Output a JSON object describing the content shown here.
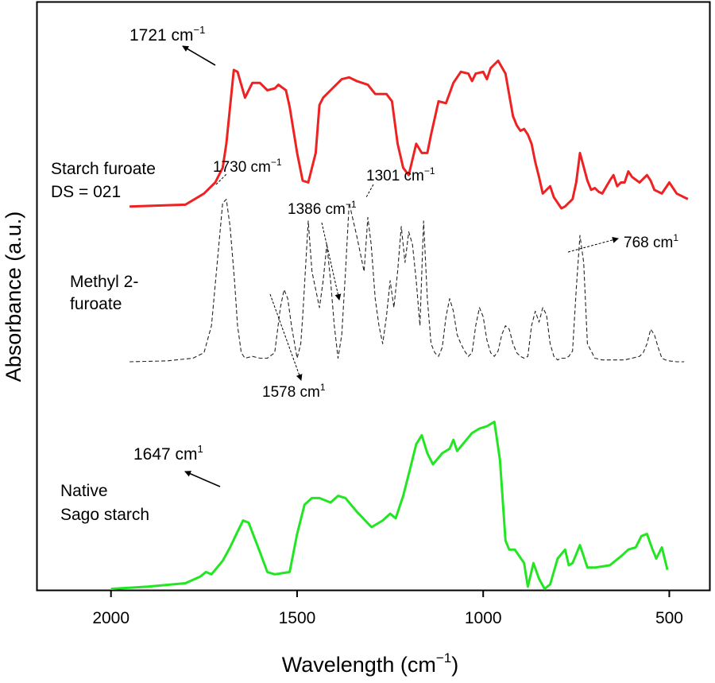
{
  "chart_data": {
    "type": "line",
    "title": "",
    "xlabel": "Wavelength (cm",
    "xlabel_sup": "−1",
    "xlabel_end": ")",
    "ylabel": "Absorbance (a.u.)",
    "xlim": [
      2200,
      390
    ],
    "ylim": [
      0,
      100
    ],
    "x_ticks": [
      2000,
      1500,
      1000,
      500
    ],
    "x_tick_labels": [
      "2000",
      "1500",
      "1000",
      "500"
    ],
    "y_ticks_shown": false,
    "series": [
      {
        "name": "Native Sago starch",
        "label_lines": [
          "Native",
          "Sago starch"
        ],
        "color": "#22e622",
        "style": "solid",
        "x": [
          2000,
          1900,
          1800,
          1760,
          1745,
          1730,
          1700,
          1680,
          1660,
          1645,
          1630,
          1600,
          1580,
          1560,
          1540,
          1520,
          1500,
          1480,
          1460,
          1440,
          1410,
          1390,
          1370,
          1340,
          1300,
          1270,
          1250,
          1235,
          1215,
          1195,
          1180,
          1165,
          1150,
          1135,
          1110,
          1090,
          1080,
          1070,
          1050,
          1030,
          1010,
          990,
          970,
          955,
          940,
          930,
          915,
          890,
          880,
          865,
          850,
          835,
          820,
          800,
          780,
          770,
          760,
          740,
          730,
          720,
          700,
          660,
          630,
          610,
          590,
          575,
          560,
          545,
          535,
          520,
          505
        ],
        "values": [
          0.5,
          1.5,
          3,
          6,
          8,
          7,
          13,
          19,
          26,
          31,
          30,
          17,
          8,
          7,
          7.5,
          8,
          25,
          38,
          41,
          41,
          39,
          42,
          41,
          35,
          28,
          31,
          34,
          32,
          42,
          55,
          65,
          69,
          61,
          56,
          61,
          63,
          67,
          62,
          66,
          70,
          72,
          73,
          75,
          58,
          22,
          18,
          18,
          12,
          1.5,
          12,
          5,
          0.5,
          2.5,
          14,
          18,
          11,
          12,
          20,
          15,
          10,
          10,
          11,
          15,
          18,
          19,
          24,
          25,
          18,
          14,
          19,
          9
        ]
      },
      {
        "name": "Methyl 2-furoate",
        "label_lines": [
          "Methyl 2-",
          "furoate"
        ],
        "color": "#222222",
        "style": "dashed",
        "x": [
          1950,
          1850,
          1780,
          1750,
          1730,
          1700,
          1690,
          1680,
          1668,
          1660,
          1650,
          1640,
          1620,
          1600,
          1580,
          1560,
          1545,
          1535,
          1525,
          1515,
          1500,
          1490,
          1485,
          1470,
          1460,
          1450,
          1440,
          1430,
          1420,
          1410,
          1400,
          1390,
          1380,
          1370,
          1360,
          1340,
          1320,
          1310,
          1301,
          1290,
          1280,
          1270,
          1260,
          1250,
          1240,
          1230,
          1220,
          1210,
          1200,
          1190,
          1180,
          1170,
          1160,
          1150,
          1140,
          1130,
          1120,
          1110,
          1100,
          1090,
          1080,
          1070,
          1060,
          1050,
          1040,
          1030,
          1020,
          1010,
          1000,
          990,
          980,
          970,
          960,
          950,
          940,
          930,
          920,
          910,
          900,
          890,
          880,
          870,
          860,
          850,
          840,
          830,
          820,
          810,
          800,
          790,
          780,
          770,
          760,
          750,
          740,
          730,
          720,
          700,
          680,
          660,
          640,
          620,
          600,
          580,
          570,
          560,
          550,
          540,
          530,
          520,
          510,
          500,
          480,
          460
        ],
        "values": [
          0,
          0.5,
          2,
          5,
          20,
          88,
          90,
          75,
          45,
          20,
          5,
          2,
          3,
          2,
          2,
          5,
          30,
          40,
          35,
          20,
          2,
          10,
          25,
          78,
          50,
          40,
          30,
          45,
          65,
          45,
          20,
          2,
          15,
          50,
          88,
          70,
          50,
          80,
          65,
          35,
          20,
          10,
          25,
          45,
          30,
          50,
          75,
          55,
          72,
          65,
          45,
          20,
          78,
          35,
          10,
          5,
          3,
          8,
          25,
          35,
          28,
          15,
          10,
          6,
          3,
          5,
          20,
          30,
          25,
          12,
          5,
          3,
          6,
          15,
          20,
          18,
          10,
          5,
          3,
          2,
          3,
          20,
          28,
          22,
          30,
          26,
          10,
          3,
          1,
          2,
          2,
          3,
          6,
          40,
          70,
          55,
          10,
          2,
          1,
          1,
          1,
          1,
          2,
          3,
          5,
          10,
          18,
          15,
          8,
          2,
          1,
          0.5,
          0,
          0
        ]
      },
      {
        "name": "Starch furoate DS = 021",
        "label_lines": [
          "Starch furoate",
          "DS = 021"
        ],
        "color": "#ee2222",
        "style": "solid",
        "x": [
          1950,
          1800,
          1750,
          1720,
          1700,
          1690,
          1680,
          1670,
          1660,
          1640,
          1620,
          1600,
          1580,
          1560,
          1550,
          1530,
          1520,
          1500,
          1485,
          1470,
          1450,
          1440,
          1430,
          1410,
          1380,
          1360,
          1340,
          1310,
          1290,
          1260,
          1245,
          1230,
          1215,
          1200,
          1180,
          1165,
          1150,
          1140,
          1120,
          1100,
          1080,
          1060,
          1040,
          1030,
          1020,
          1000,
          990,
          980,
          970,
          960,
          940,
          920,
          910,
          900,
          890,
          880,
          870,
          860,
          850,
          840,
          830,
          820,
          810,
          800,
          790,
          780,
          770,
          760,
          750,
          740,
          720,
          710,
          700,
          690,
          680,
          660,
          650,
          640,
          630,
          620,
          610,
          600,
          580,
          560,
          550,
          540,
          520,
          500,
          480,
          470,
          460,
          450
        ],
        "values": [
          1,
          2,
          8,
          14,
          22,
          35,
          55,
          75,
          74,
          60,
          68,
          68,
          64,
          65,
          67,
          64,
          55,
          30,
          15,
          14,
          30,
          56,
          60,
          64,
          70,
          71,
          69,
          67,
          62,
          62,
          58,
          35,
          22,
          18,
          35,
          30,
          30,
          40,
          58,
          57,
          68,
          74,
          73,
          69,
          73,
          74,
          70,
          76,
          78,
          80,
          73,
          50,
          45,
          42,
          43,
          40,
          35,
          25,
          17,
          8,
          10,
          12,
          6,
          3,
          0,
          1,
          3,
          5,
          14,
          30,
          15,
          10,
          11,
          9,
          8,
          15,
          18,
          12,
          14,
          14,
          20,
          17,
          14,
          18,
          15,
          10,
          8,
          14,
          8,
          7,
          6,
          5
        ]
      }
    ],
    "annotations": {
      "starch_1721": {
        "text": "1721 cm",
        "sup": "−1"
      },
      "methyl_1730": {
        "text": "1730 cm",
        "sup": "−1"
      },
      "methyl_1386": {
        "text": "1386 cm",
        "sup": "−1"
      },
      "methyl_1301": {
        "text": "1301 cm",
        "sup": "−1"
      },
      "methyl_768": {
        "text": "768 cm",
        "sup": "1"
      },
      "methyl_1578": {
        "text": "1578 cm",
        "sup": "1"
      },
      "sago_1647": {
        "text": "1647 cm",
        "sup": "1"
      }
    }
  }
}
